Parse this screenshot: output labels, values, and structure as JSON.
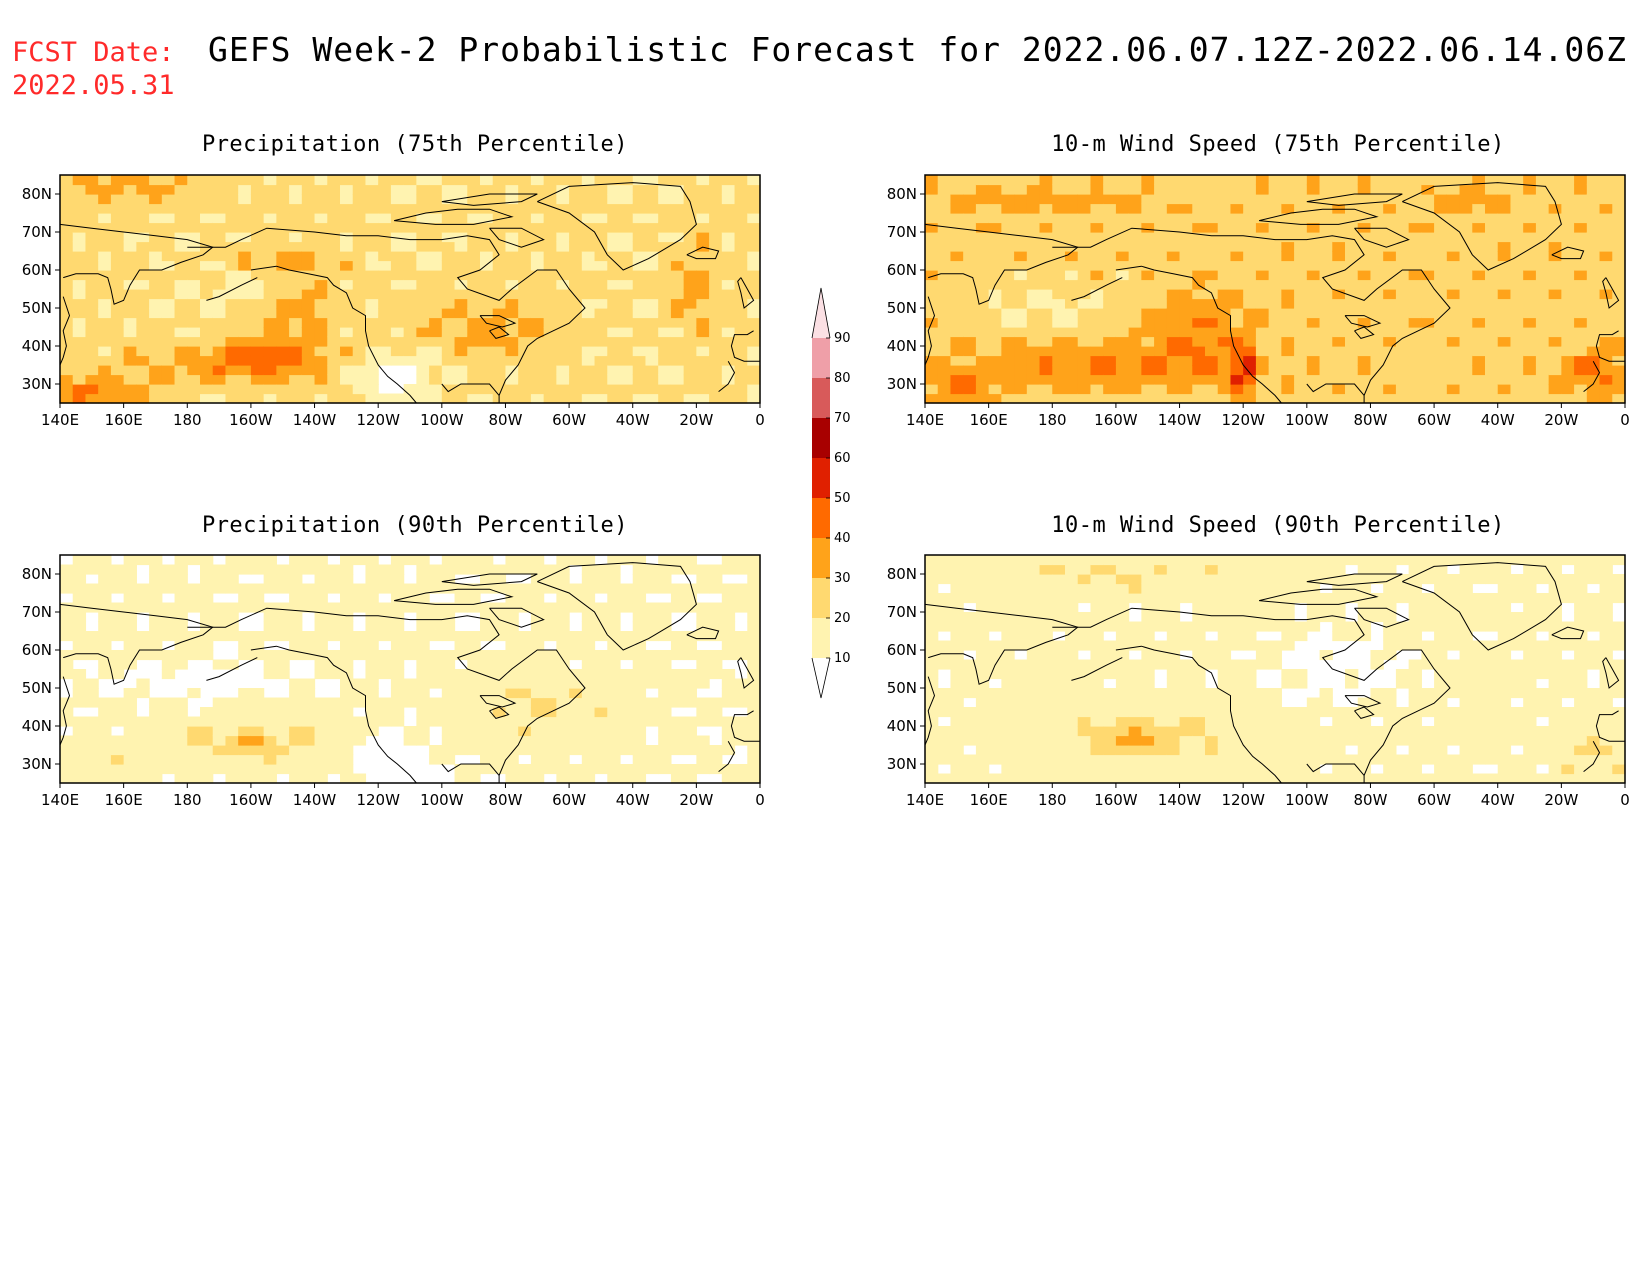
{
  "header": {
    "fcst_label": "FCST Date:",
    "fcst_date": "2022.05.31",
    "title": "GEFS Week-2 Probabilistic Forecast for 2022.06.07.12Z-2022.06.14.06Z"
  },
  "panels": [
    {
      "title": "Precipitation (75th Percentile)",
      "field": "precip75"
    },
    {
      "title": "10-m Wind Speed (75th Percentile)",
      "field": "wind75"
    },
    {
      "title": "Precipitation (90th Percentile)",
      "field": "precip90"
    },
    {
      "title": "10-m Wind Speed (90th Percentile)",
      "field": "wind90"
    }
  ],
  "axes": {
    "lat_labels": [
      "80N",
      "70N",
      "60N",
      "50N",
      "40N",
      "30N"
    ],
    "lat_values": [
      80,
      70,
      60,
      50,
      40,
      30
    ],
    "lon_labels": [
      "140E",
      "160E",
      "180",
      "160W",
      "140W",
      "120W",
      "100W",
      "80W",
      "60W",
      "40W",
      "20W",
      "0"
    ],
    "lon_values": [
      140,
      160,
      180,
      200,
      220,
      240,
      260,
      280,
      300,
      320,
      340,
      360
    ],
    "lon_range": [
      140,
      360
    ],
    "lat_range": [
      25,
      85
    ]
  },
  "colorbar": {
    "levels": [
      "10",
      "20",
      "30",
      "40",
      "50",
      "60",
      "70",
      "80",
      "90"
    ],
    "colors": [
      "#ffffff",
      "#fff3b0",
      "#ffd970",
      "#ffa31a",
      "#ff6a00",
      "#e02000",
      "#a80000",
      "#d85a5a",
      "#ef9fa8",
      "#fbe0e4"
    ]
  }
}
